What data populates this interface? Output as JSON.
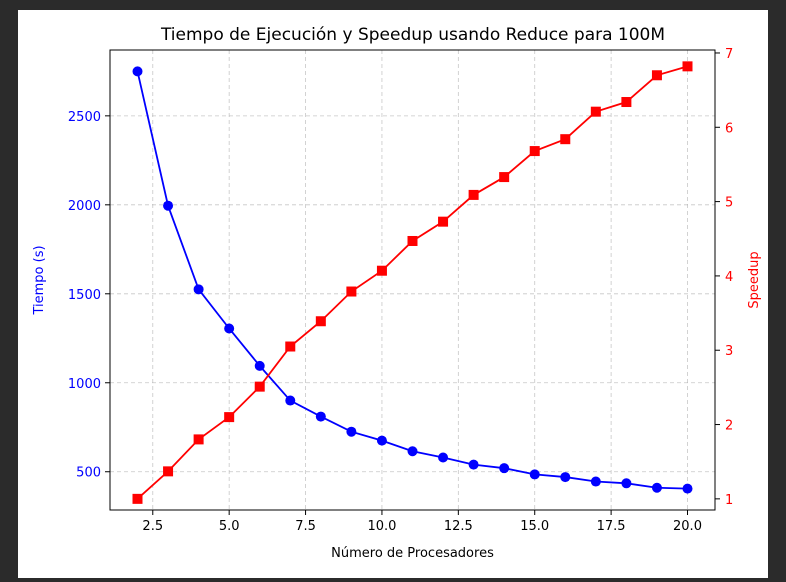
{
  "chart_data": {
    "type": "line",
    "title": "Tiempo de Ejecución y Speedup usando Reduce para 100M",
    "xlabel": "Número de Procesadores",
    "ylabel_left": "Tiempo (s)",
    "ylabel_right": "Speedup",
    "xlim": [
      1.1,
      20.9
    ],
    "ylim_left": [
      285,
      2870
    ],
    "ylim_right": [
      0.85,
      7.04
    ],
    "x_ticks": [
      2.5,
      5.0,
      7.5,
      10.0,
      12.5,
      15.0,
      17.5,
      20.0
    ],
    "x_tick_labels": [
      "2.5",
      "5.0",
      "7.5",
      "10.0",
      "12.5",
      "15.0",
      "17.5",
      "20.0"
    ],
    "y_left_ticks": [
      500,
      1000,
      1500,
      2000,
      2500
    ],
    "y_left_tick_labels": [
      "500",
      "1000",
      "1500",
      "2000",
      "2500"
    ],
    "y_right_ticks": [
      1,
      2,
      3,
      4,
      5,
      6,
      7
    ],
    "y_right_tick_labels": [
      "1",
      "2",
      "3",
      "4",
      "5",
      "6",
      "7"
    ],
    "grid": true,
    "x": [
      2,
      3,
      4,
      5,
      6,
      7,
      8,
      9,
      10,
      11,
      12,
      13,
      14,
      15,
      16,
      17,
      18,
      19,
      20
    ],
    "series": [
      {
        "axis": "left",
        "color": "#0000ff",
        "marker": "circle",
        "values": [
          2750,
          1995,
          1525,
          1305,
          1095,
          900,
          810,
          725,
          675,
          615,
          580,
          540,
          520,
          485,
          470,
          445,
          435,
          410,
          405
        ]
      },
      {
        "axis": "right",
        "color": "#ff0000",
        "marker": "square",
        "values": [
          1.0,
          1.37,
          1.8,
          2.1,
          2.51,
          3.05,
          3.39,
          3.79,
          4.07,
          4.47,
          4.73,
          5.09,
          5.33,
          5.68,
          5.84,
          6.21,
          6.34,
          6.7,
          6.82
        ]
      }
    ]
  }
}
